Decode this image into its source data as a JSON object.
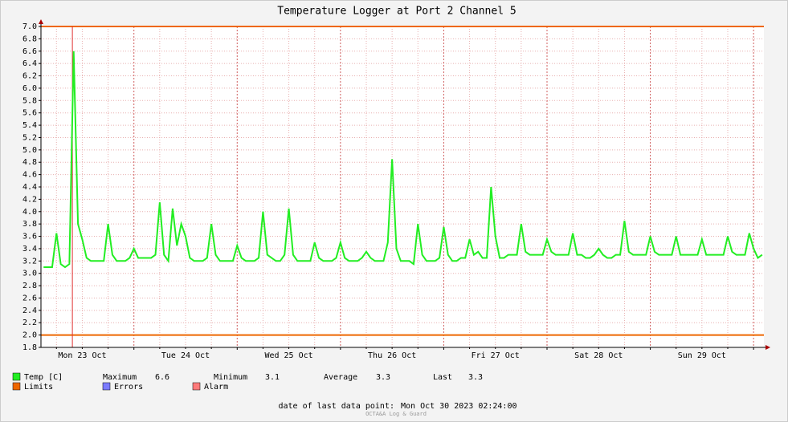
{
  "chart_data": {
    "type": "line",
    "title": "Temperature Logger at Port 2 Channel 5",
    "xlim": [
      2.4,
      170.4
    ],
    "ylim": [
      1.8,
      7.0
    ],
    "yticks": [
      {
        "value": 1.8,
        "label": "1.8"
      },
      {
        "value": 2,
        "label": "2.0"
      },
      {
        "value": 2.2,
        "label": "2.2"
      },
      {
        "value": 2.4,
        "label": "2.4"
      },
      {
        "value": 2.6,
        "label": "2.6"
      },
      {
        "value": 2.8,
        "label": "2.8"
      },
      {
        "value": 3,
        "label": "3.0"
      },
      {
        "value": 3.2,
        "label": "3.2"
      },
      {
        "value": 3.4,
        "label": "3.4"
      },
      {
        "value": 3.6,
        "label": "3.6"
      },
      {
        "value": 3.8,
        "label": "3.8"
      },
      {
        "value": 4,
        "label": "4.0"
      },
      {
        "value": 4.2,
        "label": "4.2"
      },
      {
        "value": 4.4,
        "label": "4.4"
      },
      {
        "value": 4.6,
        "label": "4.6"
      },
      {
        "value": 4.8,
        "label": "4.8"
      },
      {
        "value": 5,
        "label": "5.0"
      },
      {
        "value": 5.2,
        "label": "5.2"
      },
      {
        "value": 5.4,
        "label": "5.4"
      },
      {
        "value": 5.6,
        "label": "5.6"
      },
      {
        "value": 5.8,
        "label": "5.8"
      },
      {
        "value": 6,
        "label": "6.0"
      },
      {
        "value": 6.2,
        "label": "6.2"
      },
      {
        "value": 6.4,
        "label": "6.4"
      },
      {
        "value": 6.6,
        "label": "6.6"
      },
      {
        "value": 6.8,
        "label": "6.8"
      },
      {
        "value": 7,
        "label": "7.0"
      }
    ],
    "xticks": [
      {
        "value": 12,
        "label": "Mon 23 Oct"
      },
      {
        "value": 36,
        "label": "Tue 24 Oct"
      },
      {
        "value": 60,
        "label": "Wed 25 Oct"
      },
      {
        "value": 84,
        "label": "Thu 26 Oct"
      },
      {
        "value": 108,
        "label": "Fri 27 Oct"
      },
      {
        "value": 132,
        "label": "Sat 28 Oct"
      },
      {
        "value": 156,
        "label": "Sun 29 Oct"
      }
    ],
    "xgrid": [
      6,
      12,
      18,
      24,
      30,
      36,
      42,
      48,
      54,
      60,
      66,
      72,
      78,
      84,
      90,
      96,
      102,
      108,
      114,
      120,
      126,
      132,
      138,
      144,
      150,
      156,
      162,
      168
    ],
    "grid": true,
    "series": [
      {
        "name": "Temp [C]",
        "color": "#22ee22",
        "x": [
          3,
          4,
          5,
          6,
          7,
          8,
          9,
          10,
          11,
          12,
          13,
          14,
          15,
          16,
          17,
          18,
          19,
          20,
          21,
          22,
          23,
          24,
          25,
          26,
          27,
          28,
          29,
          30,
          31,
          32,
          33,
          34,
          35,
          36,
          37,
          38,
          39,
          40,
          41,
          42,
          43,
          44,
          45,
          46,
          47,
          48,
          49,
          50,
          51,
          52,
          53,
          54,
          55,
          56,
          57,
          58,
          59,
          60,
          61,
          62,
          63,
          64,
          65,
          66,
          67,
          68,
          69,
          70,
          71,
          72,
          73,
          74,
          75,
          76,
          77,
          78,
          79,
          80,
          81,
          82,
          83,
          84,
          85,
          86,
          87,
          88,
          89,
          90,
          91,
          92,
          93,
          94,
          95,
          96,
          97,
          98,
          99,
          100,
          101,
          102,
          103,
          104,
          105,
          106,
          107,
          108,
          109,
          110,
          111,
          112,
          113,
          114,
          115,
          116,
          117,
          118,
          119,
          120,
          121,
          122,
          123,
          124,
          125,
          126,
          127,
          128,
          129,
          130,
          131,
          132,
          133,
          134,
          135,
          136,
          137,
          138,
          139,
          140,
          141,
          142,
          143,
          144,
          145,
          146,
          147,
          148,
          149,
          150,
          151,
          152,
          153,
          154,
          155,
          156,
          157,
          158,
          159,
          160,
          161,
          162,
          163,
          164,
          165,
          166,
          167,
          168,
          169,
          170
        ],
        "values": [
          3.1,
          3.1,
          3.1,
          3.65,
          3.15,
          3.1,
          3.15,
          6.6,
          3.8,
          3.55,
          3.25,
          3.2,
          3.2,
          3.2,
          3.2,
          3.8,
          3.3,
          3.2,
          3.2,
          3.2,
          3.25,
          3.4,
          3.25,
          3.25,
          3.25,
          3.25,
          3.3,
          4.15,
          3.3,
          3.2,
          4.05,
          3.45,
          3.8,
          3.6,
          3.25,
          3.2,
          3.2,
          3.2,
          3.25,
          3.8,
          3.3,
          3.2,
          3.2,
          3.2,
          3.2,
          3.45,
          3.25,
          3.2,
          3.2,
          3.2,
          3.25,
          4.0,
          3.3,
          3.25,
          3.2,
          3.2,
          3.3,
          4.05,
          3.3,
          3.2,
          3.2,
          3.2,
          3.2,
          3.5,
          3.25,
          3.2,
          3.2,
          3.2,
          3.25,
          3.5,
          3.25,
          3.2,
          3.2,
          3.2,
          3.25,
          3.35,
          3.25,
          3.2,
          3.2,
          3.2,
          3.5,
          4.85,
          3.4,
          3.2,
          3.2,
          3.2,
          3.15,
          3.8,
          3.3,
          3.2,
          3.2,
          3.2,
          3.25,
          3.75,
          3.3,
          3.2,
          3.2,
          3.25,
          3.25,
          3.55,
          3.3,
          3.35,
          3.25,
          3.25,
          4.4,
          3.6,
          3.25,
          3.25,
          3.3,
          3.3,
          3.3,
          3.8,
          3.35,
          3.3,
          3.3,
          3.3,
          3.3,
          3.55,
          3.35,
          3.3,
          3.3,
          3.3,
          3.3,
          3.65,
          3.3,
          3.3,
          3.25,
          3.25,
          3.3,
          3.4,
          3.3,
          3.25,
          3.25,
          3.3,
          3.3,
          3.85,
          3.35,
          3.3,
          3.3,
          3.3,
          3.3,
          3.6,
          3.35,
          3.3,
          3.3,
          3.3,
          3.3,
          3.6,
          3.3,
          3.3,
          3.3,
          3.3,
          3.3,
          3.55,
          3.3,
          3.3,
          3.3,
          3.3,
          3.3,
          3.6,
          3.35,
          3.3,
          3.3,
          3.3,
          3.65,
          3.4,
          3.25,
          3.3
        ]
      }
    ],
    "limits": [
      7.0,
      2.0
    ],
    "alarm_x": 9.7,
    "stats": [
      {
        "label": "Maximum",
        "value": 6.6
      },
      {
        "label": "Minimum",
        "value": 3.1
      },
      {
        "label": "Average",
        "value": 3.3
      },
      {
        "label": "Last",
        "value": 3.3
      }
    ],
    "legend": [
      {
        "name": "Limits",
        "color": "#ee6600"
      },
      {
        "name": "Errors",
        "color": "#7b7bff"
      },
      {
        "name": "Alarm",
        "color": "#ff7a7a"
      }
    ],
    "alarm_color": "#e03030",
    "footer_label": "date of last data point:",
    "footer_value": "Mon Oct 30 2023 02:24:00",
    "watermark": "OCTA&A Log & Guard"
  }
}
